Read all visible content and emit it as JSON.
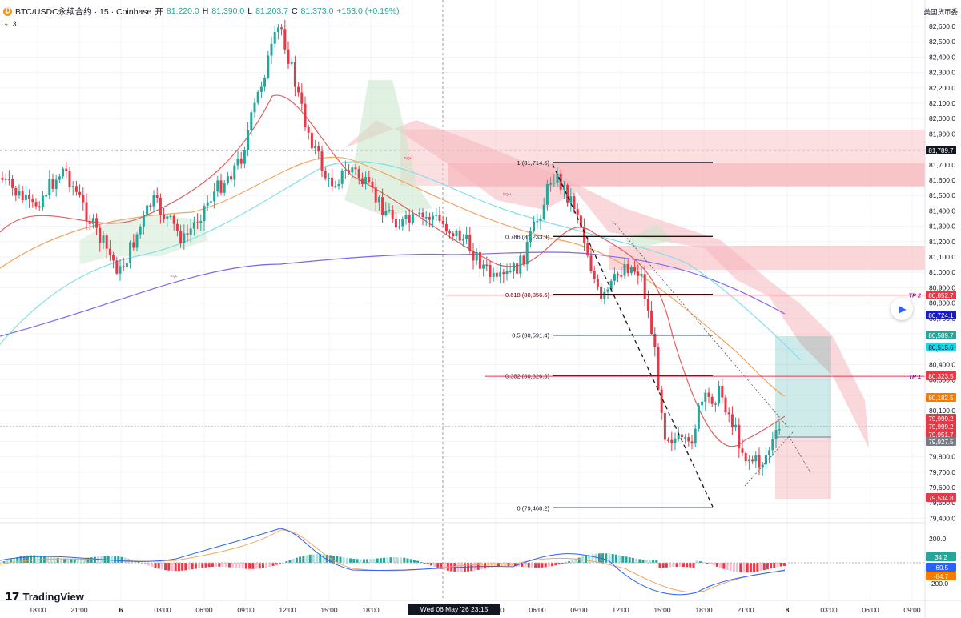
{
  "header": {
    "symbol": "BTC/USDC永续合约 · 15 · Coinbase",
    "open_label": "开",
    "open_value": "81,220.0",
    "high_label": "H",
    "high_value": "81,390.0",
    "low_label": "L",
    "low_value": "81,203.7",
    "close_label": "C",
    "close_value": "81,373.0",
    "change": "+153.0 (+0.19%)",
    "indicator_count": "3"
  },
  "currency_label": "美国货币委",
  "logo_text": "TradingView",
  "cursor_time": "Wed 06 May '26  23:15",
  "price_axis": [
    "82,600.0",
    "82,500.0",
    "82,400.0",
    "82,300.0",
    "82,200.0",
    "82,100.0",
    "82,000.0",
    "81,900.0",
    "81,800.0",
    "81,700.0",
    "81,600.0",
    "81,500.0",
    "81,400.0",
    "81,300.0",
    "81,200.0",
    "81,100.0",
    "81,000.0",
    "80,900.0",
    "80,800.0",
    "80,700.0",
    "80,600.0",
    "80,500.0",
    "80,400.0",
    "80,300.0",
    "80,200.0",
    "80,100.0",
    "80,000.0",
    "79,900.0",
    "79,800.0",
    "79,700.0",
    "79,600.0",
    "79,500.0",
    "79,400.0"
  ],
  "macd_axis": [
    "200.0",
    "-200.0"
  ],
  "time_axis": [
    "18:00",
    "21:00",
    "6",
    "03:00",
    "06:00",
    "09:00",
    "12:00",
    "15:00",
    "18:00",
    "2",
    "03:00",
    "06:00",
    "09:00",
    "12:00",
    "15:00",
    "18:00",
    "21:00",
    "8",
    "03:00",
    "06:00",
    "09:00"
  ],
  "price_tags": [
    {
      "text": "81,789.7",
      "bg": "#131722",
      "fg": "#ffffff"
    },
    {
      "text": "80,852.7",
      "bg": "#e53947",
      "fg": "#ffffff"
    },
    {
      "text": "80,724.1",
      "bg": "#1a1acc",
      "fg": "#ffffff"
    },
    {
      "text": "80,589.7",
      "bg": "#26a69a",
      "fg": "#ffffff"
    },
    {
      "text": "80,515.6",
      "bg": "#19d6e6",
      "fg": "#131722"
    },
    {
      "text": "80,323.5",
      "bg": "#e53947",
      "fg": "#ffffff"
    },
    {
      "text": "80,182.5",
      "bg": "#f57c00",
      "fg": "#ffffff"
    },
    {
      "text": "79,999.2",
      "bg": "#e53947",
      "fg": "#ffffff"
    },
    {
      "text": "79,999.2",
      "bg": "#e53947",
      "fg": "#ffffff"
    },
    {
      "text": "79,951.7",
      "bg": "#e53947",
      "fg": "#ffffff"
    },
    {
      "text": "79,927.5",
      "bg": "#787b86",
      "fg": "#ffffff"
    },
    {
      "text": "79,534.8",
      "bg": "#e53947",
      "fg": "#ffffff"
    },
    {
      "text": "34.2",
      "bg": "#26a69a",
      "fg": "#ffffff"
    },
    {
      "text": "-60.5",
      "bg": "#2962ff",
      "fg": "#ffffff"
    },
    {
      "text": "-84.7",
      "bg": "#f57c00",
      "fg": "#ffffff"
    }
  ],
  "fib_levels": [
    {
      "label": "1 (81,714.6)",
      "price": 81714.6
    },
    {
      "label": "0.786 (81,233.9)",
      "price": 81233.9
    },
    {
      "label": "0.618 (80,856.5)",
      "price": 80856.5
    },
    {
      "label": "0.5 (80,591.4)",
      "price": 80591.4
    },
    {
      "label": "0.382 (80,326.3)",
      "price": 80326.3
    },
    {
      "label": "0 (79,468.2)",
      "price": 79468.2
    }
  ],
  "tp_lines": [
    {
      "label": "TP 2",
      "price": 80852.7
    },
    {
      "label": "TP 1",
      "price": 80323.5
    }
  ],
  "eqh_labels": [
    "EQH",
    "EQL",
    "EQH"
  ],
  "colors": {
    "up": "#26a69a",
    "down": "#e53947",
    "fib": "#131722",
    "tp": "#e53947",
    "ema_long": "#7b68ee",
    "ema_mid": "#f4a460",
    "ema_fast": "#e35d5d",
    "cyan": "#80e0e8"
  }
}
